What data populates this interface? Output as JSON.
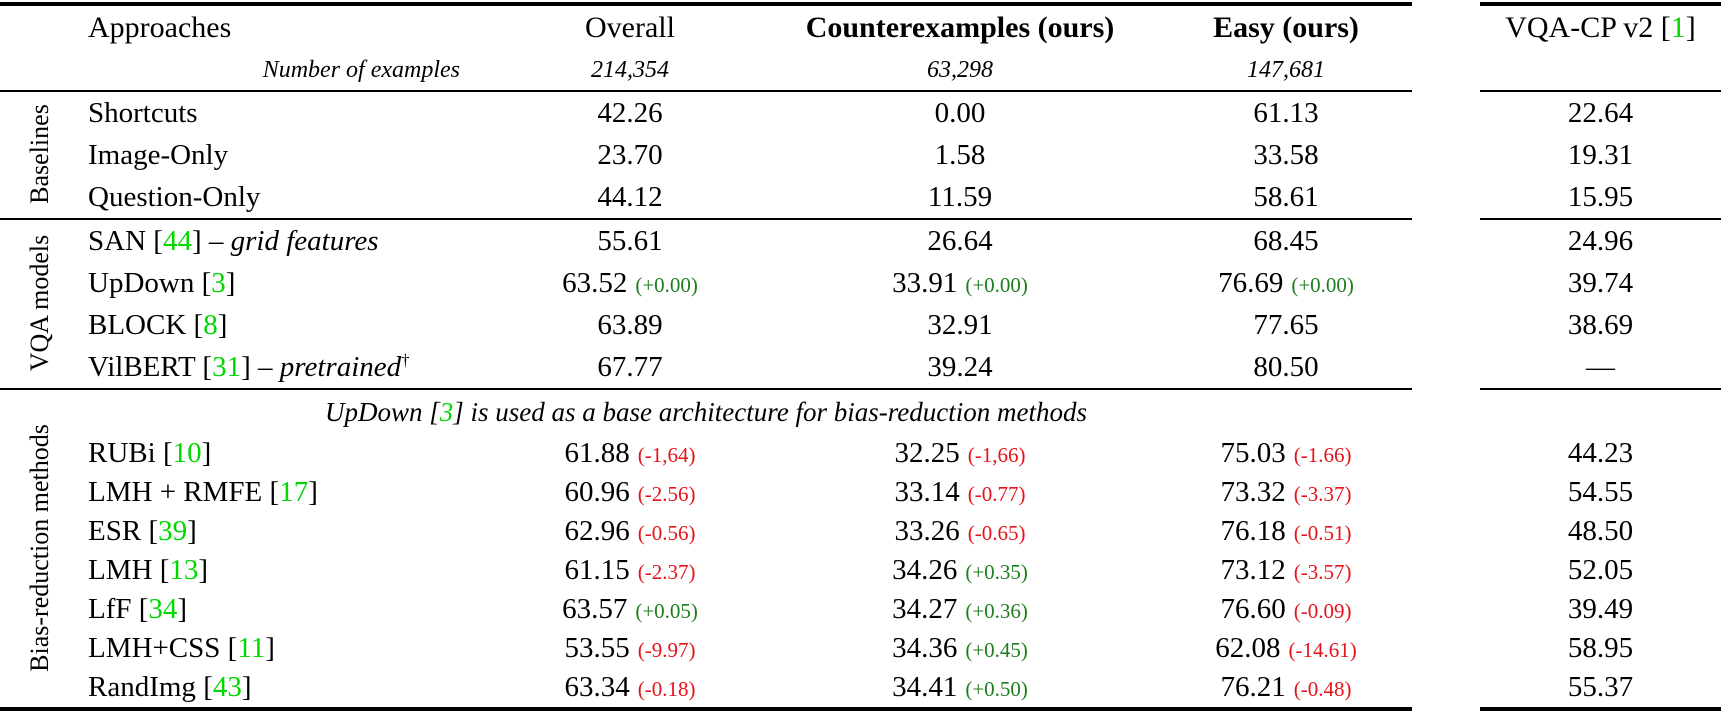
{
  "colors": {
    "cite_green": "#00d800",
    "delta_green": "#1e7e1e",
    "delta_red": "#e8131a"
  },
  "header": {
    "col_approaches": "Approaches",
    "col_overall": "Overall",
    "col_counterexamples": "Counterexamples (ours)",
    "col_easy": "Easy (ours)",
    "col_vqacp": "VQA-CP v2",
    "col_vqacp_cite_open": " [",
    "col_vqacp_cite": "1",
    "col_vqacp_cite_close": "]",
    "examples_label": "Number of examples",
    "examples_overall": "214,354",
    "examples_counterexamples": "63,298",
    "examples_easy": "147,681"
  },
  "sections": [
    {
      "label": "Baselines",
      "rows": [
        {
          "name": "Shortcuts",
          "overall": {
            "v": "42.26"
          },
          "counter": {
            "v": "0.00"
          },
          "easy": {
            "v": "61.13"
          },
          "vqacp": "22.64"
        },
        {
          "name": "Image-Only",
          "overall": {
            "v": "23.70"
          },
          "counter": {
            "v": "1.58"
          },
          "easy": {
            "v": "33.58"
          },
          "vqacp": "19.31"
        },
        {
          "name": "Question-Only",
          "overall": {
            "v": "44.12"
          },
          "counter": {
            "v": "11.59"
          },
          "easy": {
            "v": "58.61"
          },
          "vqacp": "15.95"
        }
      ]
    },
    {
      "label": "VQA models",
      "rows": [
        {
          "name": "SAN",
          "cite": "44",
          "note": " – grid features",
          "overall": {
            "v": "55.61"
          },
          "counter": {
            "v": "26.64"
          },
          "easy": {
            "v": "68.45"
          },
          "vqacp": "24.96"
        },
        {
          "name": "UpDown",
          "cite": "3",
          "overall": {
            "v": "63.52",
            "d": "(+0.00)"
          },
          "counter": {
            "v": "33.91",
            "d": "(+0.00)"
          },
          "easy": {
            "v": "76.69",
            "d": "(+0.00)"
          },
          "vqacp": "39.74"
        },
        {
          "name": "BLOCK",
          "cite": "8",
          "overall": {
            "v": "63.89"
          },
          "counter": {
            "v": "32.91"
          },
          "easy": {
            "v": "77.65"
          },
          "vqacp": "38.69"
        },
        {
          "name": "VilBERT",
          "cite": "31",
          "note": " – pretrained",
          "sup": "†",
          "overall": {
            "v": "67.77"
          },
          "counter": {
            "v": "39.24"
          },
          "easy": {
            "v": "80.50"
          },
          "vqacp": "—"
        }
      ]
    },
    {
      "label": "Bias-reduction methods",
      "compact": true,
      "note": {
        "pre": "UpDown [",
        "cite": "3",
        "post": "] is used as a base architecture for bias-reduction methods"
      },
      "rows": [
        {
          "name": "RUBi",
          "cite": "10",
          "overall": {
            "v": "61.88",
            "d": "(-1,64)"
          },
          "counter": {
            "v": "32.25",
            "d": "(-1,66)"
          },
          "easy": {
            "v": "75.03",
            "d": "(-1.66)"
          },
          "vqacp": "44.23"
        },
        {
          "name": "LMH + RMFE",
          "cite": "17",
          "overall": {
            "v": "60.96",
            "d": "(-2.56)"
          },
          "counter": {
            "v": "33.14",
            "d": "(-0.77)"
          },
          "easy": {
            "v": "73.32",
            "d": "(-3.37)"
          },
          "vqacp": "54.55"
        },
        {
          "name": "ESR",
          "cite": "39",
          "overall": {
            "v": "62.96",
            "d": "(-0.56)"
          },
          "counter": {
            "v": "33.26",
            "d": "(-0.65)"
          },
          "easy": {
            "v": "76.18",
            "d": "(-0.51)"
          },
          "vqacp": "48.50"
        },
        {
          "name": "LMH",
          "cite": "13",
          "overall": {
            "v": "61.15",
            "d": "(-2.37)"
          },
          "counter": {
            "v": "34.26",
            "d": "(+0.35)"
          },
          "easy": {
            "v": "73.12",
            "d": "(-3.57)"
          },
          "vqacp": "52.05"
        },
        {
          "name": "LfF",
          "cite": "34",
          "overall": {
            "v": "63.57",
            "d": "(+0.05)"
          },
          "counter": {
            "v": "34.27",
            "d": "(+0.36)"
          },
          "easy": {
            "v": "76.60",
            "d": "(-0.09)"
          },
          "vqacp": "39.49"
        },
        {
          "name": "LMH+CSS",
          "cite": "11",
          "overall": {
            "v": "53.55",
            "d": "(-9.97)"
          },
          "counter": {
            "v": "34.36",
            "d": "(+0.45)"
          },
          "easy": {
            "v": "62.08",
            "d": "(-14.61)"
          },
          "vqacp": "58.95"
        },
        {
          "name": "RandImg",
          "cite": "43",
          "overall": {
            "v": "63.34",
            "d": "(-0.18)"
          },
          "counter": {
            "v": "34.41",
            "d": "(+0.50)"
          },
          "easy": {
            "v": "76.21",
            "d": "(-0.48)"
          },
          "vqacp": "55.37"
        }
      ]
    }
  ]
}
